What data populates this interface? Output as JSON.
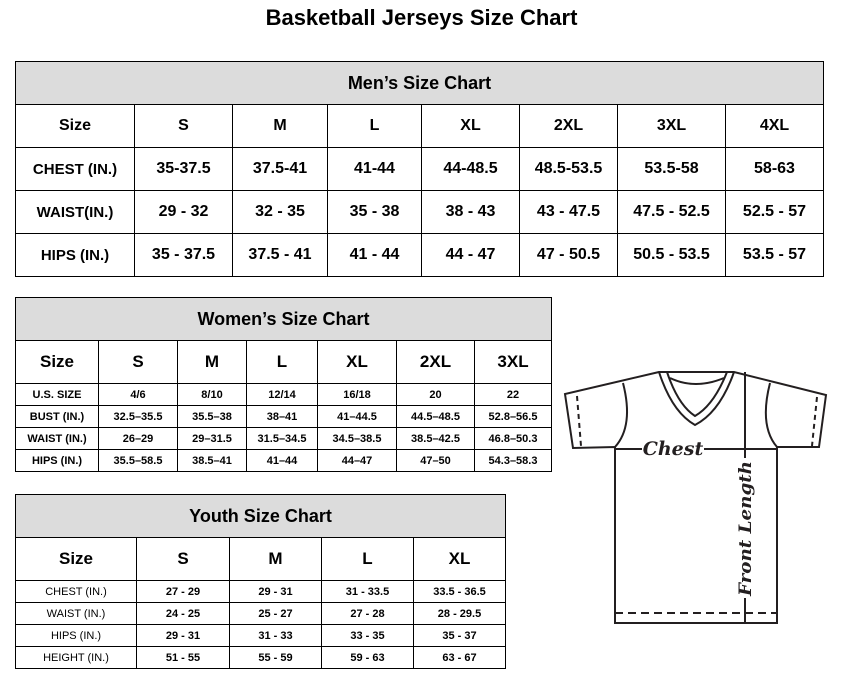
{
  "title": "Basketball Jerseys Size Chart",
  "men": {
    "caption": "Men’s Size Chart",
    "header": [
      "Size",
      "S",
      "M",
      "L",
      "XL",
      "2XL",
      "3XL",
      "4XL"
    ],
    "rows": [
      [
        "CHEST (IN.)",
        "35-37.5",
        "37.5-41",
        "41-44",
        "44-48.5",
        "48.5-53.5",
        "53.5-58",
        "58-63"
      ],
      [
        "WAIST(IN.)",
        "29 - 32",
        "32 - 35",
        "35 - 38",
        "38 - 43",
        "43 - 47.5",
        "47.5 - 52.5",
        "52.5 - 57"
      ],
      [
        "HIPS (IN.)",
        "35 - 37.5",
        "37.5 - 41",
        "41 - 44",
        "44 - 47",
        "47 - 50.5",
        "50.5 - 53.5",
        "53.5 - 57"
      ]
    ]
  },
  "women": {
    "caption": "Women’s Size Chart",
    "header": [
      "Size",
      "S",
      "M",
      "L",
      "XL",
      "2XL",
      "3XL"
    ],
    "rows": [
      [
        "U.S. SIZE",
        "4/6",
        "8/10",
        "12/14",
        "16/18",
        "20",
        "22"
      ],
      [
        "BUST (IN.)",
        "32.5–35.5",
        "35.5–38",
        "38–41",
        "41–44.5",
        "44.5–48.5",
        "52.8–56.5"
      ],
      [
        "WAIST (IN.)",
        "26–29",
        "29–31.5",
        "31.5–34.5",
        "34.5–38.5",
        "38.5–42.5",
        "46.8–50.3"
      ],
      [
        "HIPS (IN.)",
        "35.5–58.5",
        "38.5–41",
        "41–44",
        "44–47",
        "47–50",
        "54.3–58.3"
      ]
    ]
  },
  "youth": {
    "caption": "Youth Size Chart",
    "header": [
      "Size",
      "S",
      "M",
      "L",
      "XL"
    ],
    "rows": [
      [
        "CHEST (IN.)",
        "27 - 29",
        "29 - 31",
        "31 - 33.5",
        "33.5 - 36.5"
      ],
      [
        "WAIST (IN.)",
        "24 - 25",
        "25 - 27",
        "27 - 28",
        "28 - 29.5"
      ],
      [
        "HIPS (IN.)",
        "29 - 31",
        "31 - 33",
        "33 - 35",
        "35 - 37"
      ],
      [
        "HEIGHT (IN.)",
        "51 - 55",
        "55 - 59",
        "59 - 63",
        "63 - 67"
      ]
    ]
  },
  "diagram": {
    "chest_label": "Chest",
    "length_label": "Front Length"
  }
}
